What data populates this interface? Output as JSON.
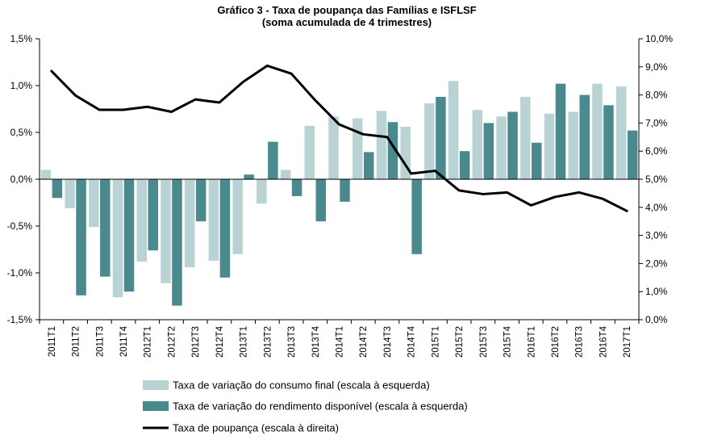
{
  "chart_data": {
    "type": "bar+line",
    "title": "Gráfico  3 - Taxa de poupança das Famílias e ISFLSF",
    "subtitle": "(soma acumulada de 4 trimestres)",
    "categories": [
      "2011T1",
      "2011T2",
      "2011T3",
      "2011T4",
      "2012T1",
      "2012T2",
      "2012T3",
      "2012T4",
      "2013T1",
      "2013T2",
      "2013T3",
      "2013T4",
      "2014T1",
      "2014T2",
      "2014T3",
      "2014T4",
      "2015T1",
      "2015T2",
      "2015T3",
      "2015T4",
      "2016T1",
      "2016T2",
      "2016T3",
      "2016T4",
      "2017T1"
    ],
    "series": [
      {
        "name": "Taxa de variação do consumo final (escala à esquerda)",
        "type": "bar",
        "axis": "left",
        "color": "#b9d3d5",
        "values": [
          0.1,
          -0.31,
          -0.51,
          -1.26,
          -0.88,
          -1.11,
          -0.94,
          -0.87,
          -0.8,
          -0.26,
          0.1,
          0.57,
          0.67,
          0.65,
          0.73,
          0.56,
          0.81,
          1.05,
          0.74,
          0.67,
          0.88,
          0.7,
          0.72,
          1.02,
          0.99
        ]
      },
      {
        "name": "Taxa de variação do rendimento disponível (escala à esquerda)",
        "type": "bar",
        "axis": "left",
        "color": "#4a8a8f",
        "values": [
          -0.2,
          -1.24,
          -1.04,
          -1.2,
          -0.76,
          -1.35,
          -0.45,
          -1.05,
          0.05,
          0.4,
          -0.18,
          -0.45,
          -0.24,
          0.29,
          0.61,
          -0.8,
          0.88,
          0.3,
          0.6,
          0.72,
          0.39,
          1.02,
          0.9,
          0.79,
          0.52
        ]
      },
      {
        "name": "Taxa de poupança (escala à direita)",
        "type": "line",
        "axis": "right",
        "color": "#000000",
        "values": [
          8.85,
          7.98,
          7.47,
          7.47,
          7.58,
          7.4,
          7.84,
          7.73,
          8.47,
          9.04,
          8.76,
          7.81,
          6.95,
          6.6,
          6.5,
          5.2,
          5.3,
          4.6,
          4.47,
          4.53,
          4.07,
          4.37,
          4.53,
          4.3,
          3.87
        ]
      }
    ],
    "yleft": {
      "min": -1.5,
      "max": 1.5,
      "ticks": [
        "-1,5%",
        "-1,0%",
        "-0,5%",
        "0,0%",
        "0,5%",
        "1,0%",
        "1,5%"
      ]
    },
    "yright": {
      "min": 0,
      "max": 10,
      "ticks": [
        "0,0%",
        "1,0%",
        "2,0%",
        "3,0%",
        "4,0%",
        "5,0%",
        "6,0%",
        "7,0%",
        "8,0%",
        "9,0%",
        "10,0%"
      ]
    },
    "grid": false,
    "legend_position": "bottom"
  }
}
